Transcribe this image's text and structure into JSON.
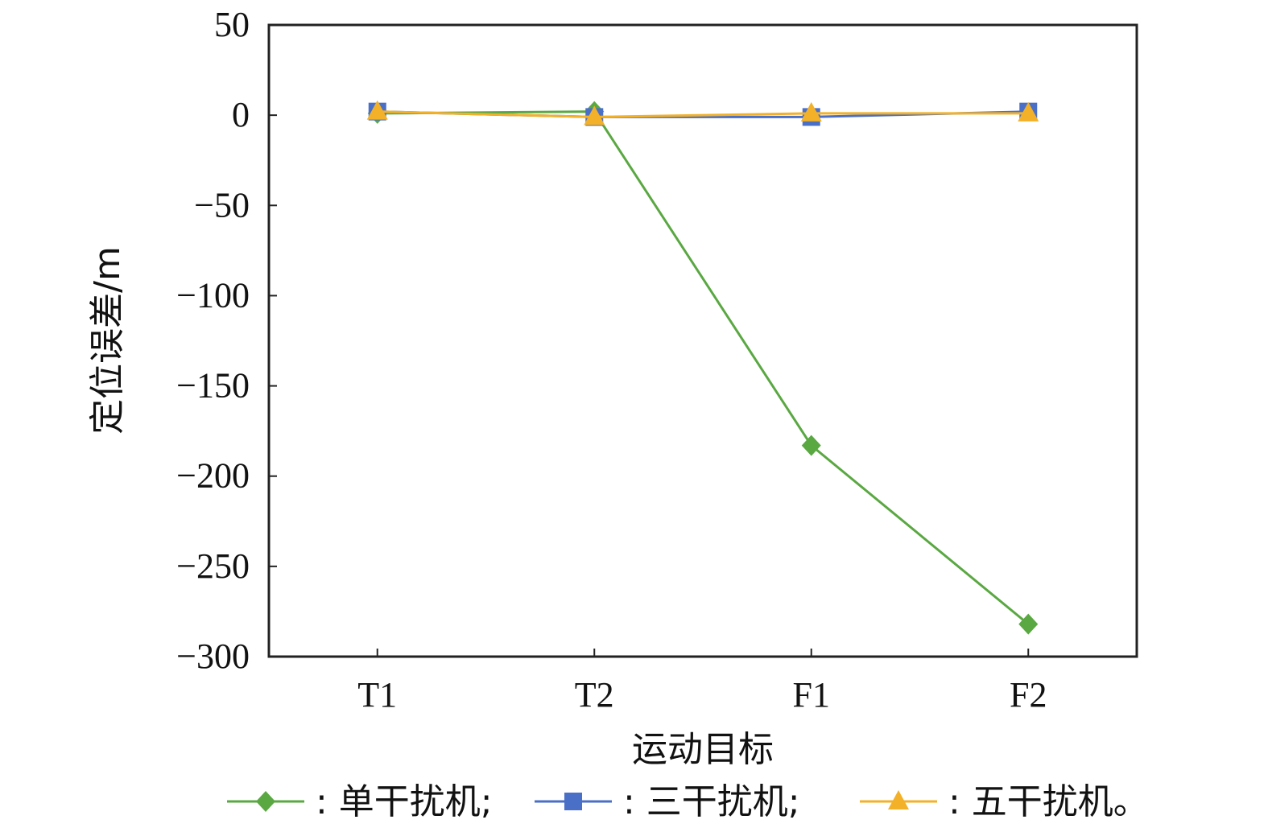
{
  "chart_data": {
    "type": "line",
    "categories": [
      "T1",
      "T2",
      "F1",
      "F2"
    ],
    "xlabel": "运动目标",
    "ylabel": "定位误差/m",
    "ylim": [
      -300,
      50
    ],
    "yticks": [
      50,
      0,
      -50,
      -100,
      -150,
      -200,
      -250,
      -300
    ],
    "ytick_labels": [
      "50",
      "0",
      "−50",
      "−100",
      "−150",
      "−200",
      "−250",
      "−300"
    ],
    "grid": false,
    "legend_position": "bottom",
    "series": [
      {
        "name": "单干扰机",
        "legend_text": ": 单干扰机;",
        "marker": "diamond",
        "color": "#5aa842",
        "values": [
          1,
          2,
          -183,
          -282
        ]
      },
      {
        "name": "三干扰机",
        "legend_text": ": 三干扰机;",
        "marker": "square",
        "color": "#4a6fc6",
        "values": [
          2,
          -1,
          -1,
          2
        ]
      },
      {
        "name": "五干扰机",
        "legend_text": ": 五干扰机。",
        "marker": "triangle",
        "color": "#f2b128",
        "values": [
          2,
          -1,
          1,
          1
        ]
      }
    ]
  }
}
